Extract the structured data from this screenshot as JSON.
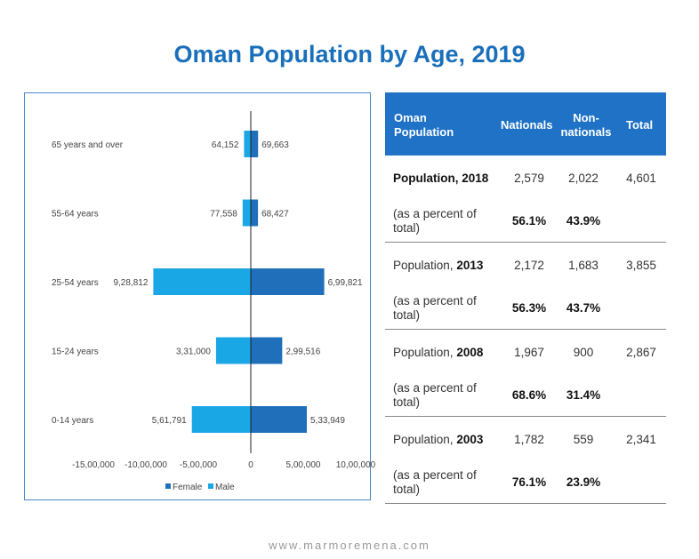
{
  "title": "Oman Population by Age, 2019",
  "footer": "www.marmoremena.com",
  "colors": {
    "female": "#1f6fba",
    "male": "#1aa7e6",
    "title": "#1a6fba",
    "header_bg": "#1f72c6"
  },
  "chart_data": {
    "type": "bar",
    "orientation": "horizontal",
    "categories": [
      "65 years and over",
      "55-64 years",
      "25-54 years",
      "15-24 years",
      "0-14 years"
    ],
    "series": [
      {
        "name": "Female",
        "values": [
          69663,
          68427,
          699821,
          299516,
          533949
        ],
        "labels": [
          "69,663",
          "68,427",
          "6,99,821",
          "2,99,516",
          "5,33,949"
        ]
      },
      {
        "name": "Male",
        "values": [
          -64152,
          -77558,
          -928812,
          -331000,
          -561791
        ],
        "labels": [
          "64,152",
          "77,558",
          "9,28,812",
          "3,31,000",
          "5,61,791"
        ]
      }
    ],
    "xlim": [
      -1500000,
      1000000
    ],
    "x_ticks": [
      -1500000,
      -1000000,
      -500000,
      0,
      500000,
      1000000
    ],
    "x_tick_labels": [
      "-15,00,000",
      "-10,00,000",
      "-5,00,000",
      "0",
      "5,00,000",
      "10,00,000"
    ],
    "legend": [
      "Female",
      "Male"
    ],
    "legend_position": "bottom",
    "grid": false
  },
  "table": {
    "headers": {
      "col1": "Oman Population",
      "col2": "Nationals",
      "col3": "Non-nationals",
      "col4": "Total"
    },
    "groups": [
      {
        "label_prefix": "",
        "label_bold": "Population, 2018",
        "nationals": "2,579",
        "non_nationals": "2,022",
        "total": "4,601",
        "pct_label": "(as a percent of total)",
        "pct_nationals": "56.1%",
        "pct_non_nationals": "43.9%"
      },
      {
        "label_prefix": "Population, ",
        "label_bold": "2013",
        "nationals": "2,172",
        "non_nationals": "1,683",
        "total": "3,855",
        "pct_label": "(as a percent of total)",
        "pct_nationals": "56.3%",
        "pct_non_nationals": "43.7%"
      },
      {
        "label_prefix": "Population, ",
        "label_bold": "2008",
        "nationals": "1,967",
        "non_nationals": "900",
        "total": "2,867",
        "pct_label": "(as a percent of total)",
        "pct_nationals": "68.6%",
        "pct_non_nationals": "31.4%"
      },
      {
        "label_prefix": "Population, ",
        "label_bold": "2003",
        "nationals": "1,782",
        "non_nationals": "559",
        "total": "2,341",
        "pct_label": "(as a percent of total)",
        "pct_nationals": "76.1%",
        "pct_non_nationals": "23.9%"
      }
    ]
  }
}
